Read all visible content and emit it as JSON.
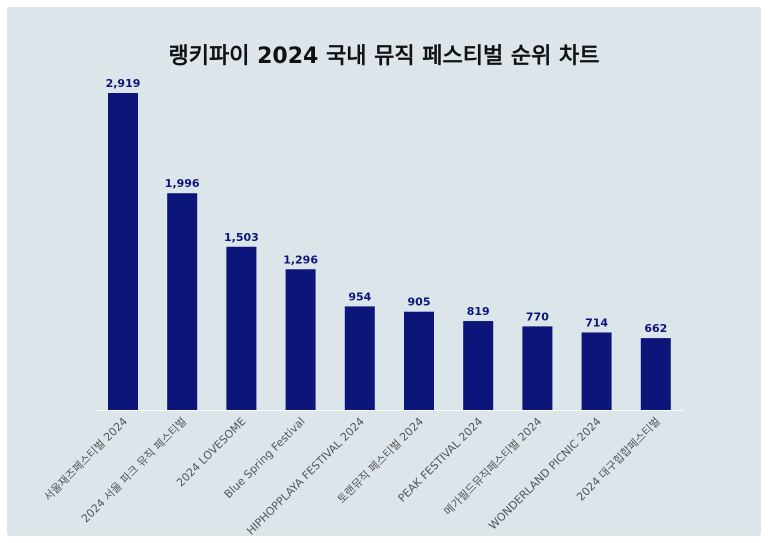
{
  "chart_data": {
    "type": "bar",
    "title": "랭키파이 2024 국내 뮤직 페스티벌 순위 차트",
    "categories": [
      "서울재즈페스티벌 2024",
      "2024 서울 파크 뮤직 페스티벌",
      "2024 LOVESOME",
      "Blue Spring Festival",
      "HIPHOPPLAYA FESTIVAL 2024",
      "토랜뮤직 페스티벌 2024",
      "PEAK FESTIVAL 2024",
      "메가필드뮤직페스티벌 2024",
      "WONDERLAND PICNIC 2024",
      "2024 대구힙합페스티벌"
    ],
    "values": [
      2919,
      1996,
      1503,
      1296,
      954,
      905,
      819,
      770,
      714,
      662
    ],
    "value_labels": [
      "2,919",
      "1,996",
      "1,503",
      "1,296",
      "954",
      "905",
      "819",
      "770",
      "714",
      "662"
    ],
    "ylim": [
      0,
      2919
    ],
    "xlabel": "",
    "ylabel": "",
    "grid": false,
    "legend": "none",
    "colors": {
      "bar": "#0b157a",
      "value_label": "#0b157a",
      "background": "#dce6ea",
      "axis": "#ffffff",
      "tick_label": "#555555"
    }
  }
}
